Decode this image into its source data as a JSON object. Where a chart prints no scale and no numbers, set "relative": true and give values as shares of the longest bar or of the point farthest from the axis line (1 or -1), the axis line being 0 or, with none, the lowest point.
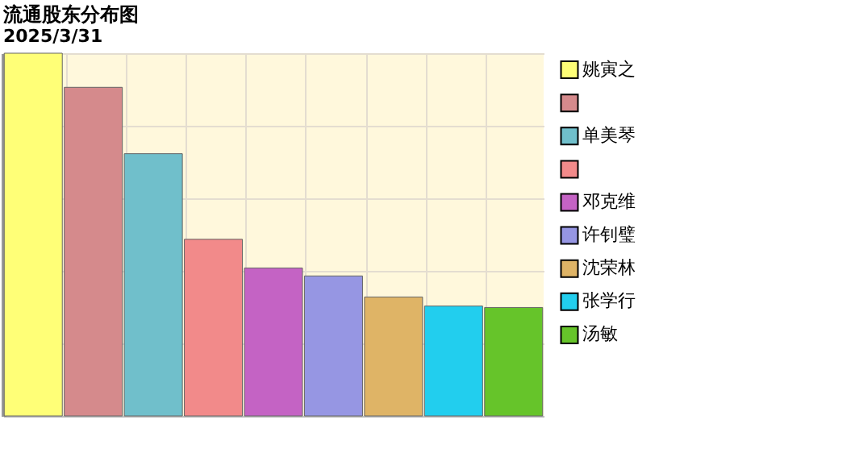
{
  "chart_data": {
    "type": "bar",
    "title": "流通股东分布图",
    "subtitle": "2025/3/31",
    "relative": true,
    "stacked": true,
    "categories": [
      null,
      null,
      null,
      null,
      null,
      null,
      null,
      null,
      null
    ],
    "grid": true,
    "legend": "right",
    "tick_labels": false,
    "series": [
      {
        "name": "姚寅之",
        "color": "#ffff77",
        "values": [
          1,
          null,
          null,
          null,
          null,
          null,
          null,
          null,
          null
        ]
      },
      {
        "color": "#d58a8c",
        "values": [
          null,
          0.906,
          null,
          null,
          null,
          null,
          null,
          null,
          null
        ]
      },
      {
        "name": "单美琴",
        "color": "#70bfcb",
        "values": [
          null,
          null,
          0.723,
          null,
          null,
          null,
          null,
          null,
          null
        ]
      },
      {
        "color": "#f28a8a",
        "values": [
          null,
          null,
          null,
          0.487,
          null,
          null,
          null,
          null,
          null
        ]
      },
      {
        "name": "邓克维",
        "color": "#c463c4",
        "values": [
          null,
          null,
          null,
          null,
          0.408,
          null,
          null,
          null,
          null
        ]
      },
      {
        "name": "许钊璧",
        "color": "#9696e3",
        "values": [
          null,
          null,
          null,
          null,
          null,
          0.386,
          null,
          null,
          null
        ]
      },
      {
        "name": "沈荣林",
        "color": "#dfb466",
        "values": [
          null,
          null,
          null,
          null,
          null,
          null,
          0.328,
          null,
          null
        ]
      },
      {
        "name": "张学行",
        "color": "#22ceee",
        "values": [
          null,
          null,
          null,
          null,
          null,
          null,
          null,
          0.303,
          null
        ]
      },
      {
        "name": "汤敏",
        "color": "#66c42a",
        "values": [
          null,
          null,
          null,
          null,
          null,
          null,
          null,
          null,
          0.299
        ]
      }
    ]
  }
}
